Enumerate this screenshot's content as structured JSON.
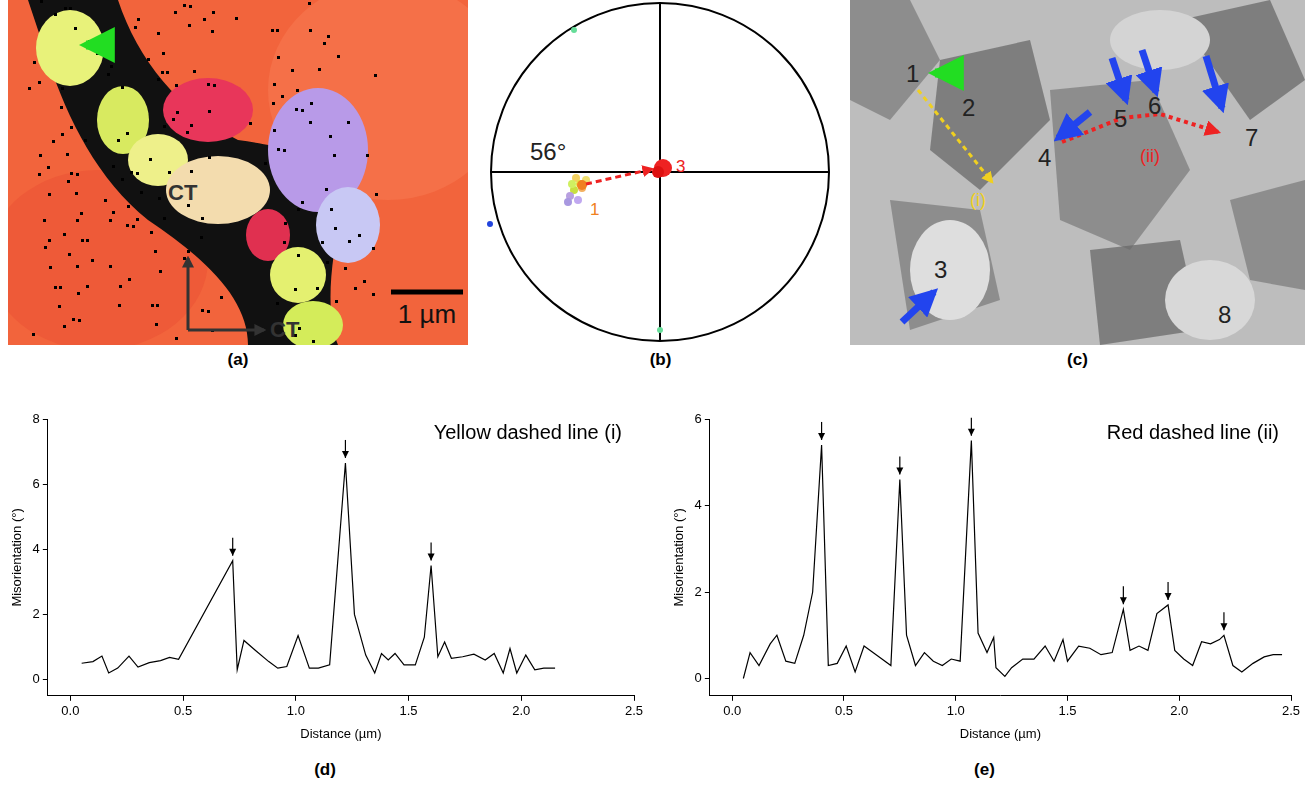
{
  "images": {
    "a": {
      "panel": "(a)",
      "texts": [
        "CT",
        "CT"
      ],
      "scale_bar": "1 µm"
    },
    "b": {
      "panel": "(b)",
      "angle": "56°",
      "points": [
        "1",
        "3"
      ]
    },
    "c": {
      "panel": "(c)",
      "points": [
        "1",
        "2",
        "3",
        "4",
        "5",
        "6",
        "7",
        "8"
      ],
      "paths": [
        "(i)",
        "(ii)"
      ]
    }
  },
  "chart_data": [
    {
      "type": "line",
      "panel": "(d)",
      "annotation": "Yellow dashed line (i)",
      "x_label": "Distance (µm)",
      "y_label": "Misorientation (°)",
      "color": "#000000",
      "grid": false,
      "x": [
        0.05,
        0.1,
        0.14,
        0.17,
        0.21,
        0.26,
        0.3,
        0.35,
        0.4,
        0.44,
        0.48,
        0.72,
        0.74,
        0.77,
        0.82,
        0.88,
        0.92,
        0.96,
        1.01,
        1.06,
        1.1,
        1.15,
        1.22,
        1.26,
        1.31,
        1.35,
        1.38,
        1.41,
        1.44,
        1.48,
        1.53,
        1.57,
        1.6,
        1.63,
        1.66,
        1.69,
        1.74,
        1.79,
        1.84,
        1.88,
        1.92,
        1.95,
        1.98,
        2.02,
        2.06,
        2.1,
        2.15
      ],
      "values": [
        0.5,
        0.55,
        0.72,
        0.2,
        0.35,
        0.72,
        0.38,
        0.52,
        0.58,
        0.68,
        0.62,
        3.65,
        0.3,
        1.2,
        0.9,
        0.55,
        0.35,
        0.4,
        1.35,
        0.35,
        0.35,
        0.45,
        6.65,
        2.0,
        0.75,
        0.2,
        0.8,
        0.6,
        0.8,
        0.45,
        0.45,
        1.3,
        3.5,
        0.7,
        1.15,
        0.65,
        0.7,
        0.78,
        0.6,
        0.8,
        0.2,
        0.95,
        0.2,
        0.75,
        0.3,
        0.35,
        0.35
      ],
      "peak_arrows": [
        0.72,
        1.22,
        1.6
      ],
      "xlim": [
        -0.1,
        2.5
      ],
      "xticks": [
        {
          "value": 0,
          "label": "0.0"
        },
        0.5,
        {
          "value": 1,
          "label": "1.0"
        },
        1.5,
        {
          "value": 2,
          "label": "2.0"
        },
        2.5
      ],
      "ylim": [
        -0.5,
        8
      ],
      "yticks": [
        0,
        2,
        4,
        6,
        8
      ]
    },
    {
      "type": "line",
      "panel": "(e)",
      "annotation": "Red dashed line (ii)",
      "x_label": "Distance (µm)",
      "y_label": "Misorientation (°)",
      "color": "#000000",
      "grid": false,
      "x": [
        0.05,
        0.08,
        0.12,
        0.17,
        0.2,
        0.24,
        0.28,
        0.32,
        0.36,
        0.4,
        0.43,
        0.47,
        0.51,
        0.55,
        0.59,
        0.63,
        0.67,
        0.71,
        0.75,
        0.78,
        0.82,
        0.86,
        0.9,
        0.94,
        0.98,
        1.02,
        1.07,
        1.1,
        1.14,
        1.17,
        1.18,
        1.22,
        1.25,
        1.3,
        1.35,
        1.4,
        1.44,
        1.48,
        1.5,
        1.55,
        1.6,
        1.65,
        1.7,
        1.75,
        1.78,
        1.82,
        1.86,
        1.9,
        1.95,
        1.98,
        2.02,
        2.06,
        2.1,
        2.14,
        2.18,
        2.2,
        2.24,
        2.28,
        2.33,
        2.38,
        2.42,
        2.46
      ],
      "values": [
        0,
        0.6,
        0.3,
        0.8,
        1.0,
        0.4,
        0.35,
        1.0,
        2.0,
        5.4,
        0.3,
        0.35,
        0.75,
        0.15,
        0.75,
        0.6,
        0.45,
        0.3,
        4.6,
        1.0,
        0.3,
        0.6,
        0.4,
        0.3,
        0.45,
        0.4,
        5.5,
        1.05,
        0.6,
        0.95,
        0.25,
        0.05,
        0.25,
        0.45,
        0.45,
        0.75,
        0.4,
        0.9,
        0.4,
        0.75,
        0.7,
        0.55,
        0.6,
        1.6,
        0.65,
        0.75,
        0.65,
        1.5,
        1.7,
        0.65,
        0.45,
        0.3,
        0.85,
        0.8,
        0.9,
        1.0,
        0.3,
        0.15,
        0.35,
        0.5,
        0.55,
        0.55
      ],
      "peak_arrows": [
        0.4,
        0.75,
        1.07,
        1.75,
        1.95,
        2.2
      ],
      "xlim": [
        -0.1,
        2.5
      ],
      "xticks": [
        {
          "value": 0,
          "label": "0.0"
        },
        0.5,
        {
          "value": 1,
          "label": "1.0"
        },
        1.5,
        {
          "value": 2,
          "label": "2.0"
        },
        2.5
      ],
      "ylim": [
        -0.4,
        6
      ],
      "yticks": [
        0,
        2,
        4,
        6
      ]
    }
  ]
}
